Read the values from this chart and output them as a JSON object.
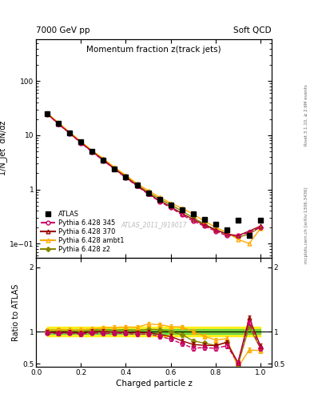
{
  "title_top_left": "7000 GeV pp",
  "title_top_right": "Soft QCD",
  "right_label_top": "Rivet 3.1.10, ≥ 2.6M events",
  "right_label_bottom": "mcplots.cern.ch [arXiv:1306.3436]",
  "main_title": "Momentum fraction z(track jets)",
  "watermark": "ATLAS_2011_I919017",
  "ylabel_main": "1/N_jet  dN/dz",
  "ylabel_ratio": "Ratio to ATLAS",
  "xlabel": "Charged particle z",
  "xlim": [
    0.0,
    1.05
  ],
  "ylim_main_log": [
    0.055,
    600
  ],
  "ylim_ratio": [
    0.45,
    2.15
  ],
  "background_color": "#ffffff",
  "atlas_color": "#000000",
  "p345_color": "#cc0066",
  "p370_color": "#990000",
  "pambt1_color": "#ffaa00",
  "pz2_color": "#888800",
  "atlas_x": [
    0.05,
    0.1,
    0.15,
    0.2,
    0.25,
    0.3,
    0.35,
    0.4,
    0.45,
    0.5,
    0.55,
    0.6,
    0.65,
    0.7,
    0.75,
    0.8,
    0.85,
    0.9,
    0.95,
    1.0
  ],
  "atlas_y": [
    25.0,
    16.5,
    11.0,
    7.5,
    5.0,
    3.5,
    2.4,
    1.7,
    1.2,
    0.85,
    0.65,
    0.52,
    0.42,
    0.35,
    0.28,
    0.23,
    0.18,
    0.27,
    0.14,
    0.27
  ],
  "atlas_yerr": [
    0.5,
    0.3,
    0.2,
    0.15,
    0.1,
    0.07,
    0.05,
    0.04,
    0.03,
    0.02,
    0.015,
    0.012,
    0.01,
    0.009,
    0.008,
    0.007,
    0.006,
    0.012,
    0.006,
    0.015
  ],
  "p345_y": [
    24.5,
    16.0,
    10.8,
    7.2,
    4.9,
    3.4,
    2.35,
    1.65,
    1.15,
    0.82,
    0.6,
    0.46,
    0.34,
    0.26,
    0.21,
    0.17,
    0.14,
    0.14,
    0.16,
    0.2
  ],
  "p370_y": [
    24.8,
    16.2,
    10.9,
    7.3,
    5.0,
    3.5,
    2.38,
    1.68,
    1.18,
    0.84,
    0.62,
    0.48,
    0.36,
    0.28,
    0.22,
    0.18,
    0.15,
    0.14,
    0.17,
    0.21
  ],
  "pambt1_y": [
    25.5,
    17.0,
    11.3,
    7.7,
    5.2,
    3.7,
    2.55,
    1.82,
    1.28,
    0.95,
    0.72,
    0.56,
    0.45,
    0.35,
    0.26,
    0.2,
    0.16,
    0.12,
    0.1,
    0.19
  ],
  "pz2_y": [
    25.2,
    16.7,
    11.1,
    7.5,
    5.1,
    3.6,
    2.45,
    1.75,
    1.22,
    0.88,
    0.67,
    0.52,
    0.4,
    0.3,
    0.23,
    0.18,
    0.15,
    0.13,
    0.15,
    0.2
  ],
  "ratio_345_y": [
    0.98,
    0.97,
    0.98,
    0.96,
    0.98,
    0.97,
    0.979,
    0.971,
    0.958,
    0.965,
    0.923,
    0.885,
    0.81,
    0.743,
    0.75,
    0.74,
    0.78,
    0.52,
    1.14,
    0.74
  ],
  "ratio_370_y": [
    0.992,
    0.982,
    0.991,
    0.973,
    1.0,
    1.0,
    0.992,
    0.988,
    0.983,
    0.988,
    0.954,
    0.923,
    0.857,
    0.8,
    0.786,
    0.783,
    0.833,
    0.519,
    1.21,
    0.778
  ],
  "ratio_ambt1_y": [
    1.02,
    1.03,
    1.027,
    1.027,
    1.04,
    1.057,
    1.063,
    1.071,
    1.067,
    1.118,
    1.108,
    1.077,
    1.071,
    1.0,
    0.929,
    0.87,
    0.889,
    0.444,
    0.714,
    0.704
  ],
  "ratio_z2_y": [
    1.008,
    1.012,
    1.009,
    1.0,
    1.02,
    1.029,
    1.021,
    1.029,
    1.017,
    1.035,
    1.031,
    1.0,
    0.952,
    0.857,
    0.821,
    0.783,
    0.833,
    0.481,
    1.07,
    0.741
  ],
  "band_green_lo": [
    0.96,
    0.96,
    0.96,
    0.96,
    0.96,
    0.96,
    0.96,
    0.96,
    0.96,
    0.96,
    0.96,
    0.96,
    0.96,
    0.96,
    0.96,
    0.96,
    0.96,
    0.96,
    0.96,
    0.96
  ],
  "band_green_hi": [
    1.04,
    1.04,
    1.04,
    1.04,
    1.04,
    1.04,
    1.04,
    1.04,
    1.04,
    1.04,
    1.04,
    1.04,
    1.04,
    1.04,
    1.04,
    1.04,
    1.04,
    1.04,
    1.04,
    1.04
  ],
  "band_yellow_lo": [
    0.92,
    0.92,
    0.92,
    0.92,
    0.92,
    0.92,
    0.92,
    0.92,
    0.92,
    0.92,
    0.92,
    0.92,
    0.92,
    0.92,
    0.92,
    0.92,
    0.92,
    0.92,
    0.92,
    0.92
  ],
  "band_yellow_hi": [
    1.08,
    1.08,
    1.08,
    1.08,
    1.08,
    1.08,
    1.08,
    1.08,
    1.08,
    1.08,
    1.08,
    1.08,
    1.08,
    1.08,
    1.08,
    1.08,
    1.08,
    1.08,
    1.08,
    1.08
  ]
}
